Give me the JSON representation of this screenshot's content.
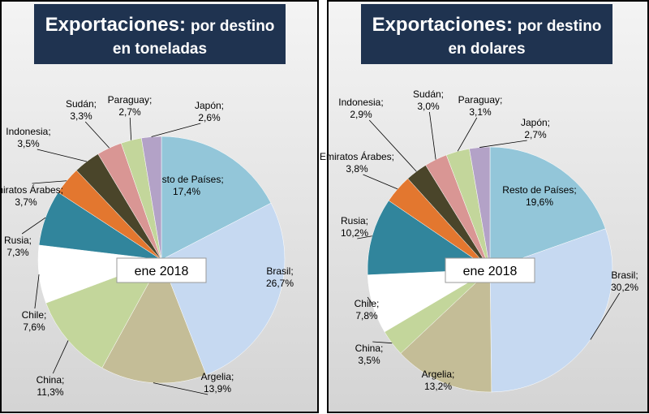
{
  "chart_data": [
    {
      "type": "pie",
      "title": "Exportaciones:",
      "subtitle": "por destino en toneladas",
      "annotation": "ene 2018",
      "separator": ";",
      "categories": [
        "Resto de Países",
        "Brasil",
        "Argelia",
        "China",
        "Chile",
        "Rusia",
        "Emiratos Árabes",
        "Indonesia",
        "Sudán",
        "Paraguay",
        "Japón"
      ],
      "values": [
        17.4,
        26.7,
        13.9,
        11.3,
        7.6,
        7.3,
        3.7,
        3.5,
        3.3,
        2.7,
        2.6
      ],
      "value_labels": [
        "17,4%",
        "26,7%",
        "13,9%",
        "11,3%",
        "7,6%",
        "7,3%",
        "3,7%",
        "3,5%",
        "3,3%",
        "2,7%",
        "2,6%"
      ],
      "colors": [
        "#93c6d9",
        "#c6d9f1",
        "#c4bd97",
        "#c3d69b",
        "#ffffff",
        "#31859c",
        "#e3772f",
        "#4a452a",
        "#d99694",
        "#c3d69b",
        "#b3a2c7"
      ]
    },
    {
      "type": "pie",
      "title": "Exportaciones:",
      "subtitle": "por destino en dolares",
      "annotation": "ene 2018",
      "separator": ";",
      "categories": [
        "Resto de Países",
        "Brasil",
        "Argelia",
        "China",
        "Chile",
        "Rusia",
        "Emiratos Árabes",
        "Indonesia",
        "Sudán",
        "Paraguay",
        "Japón"
      ],
      "values": [
        19.6,
        30.2,
        13.2,
        3.5,
        7.8,
        10.2,
        3.8,
        2.9,
        3.0,
        3.1,
        2.7
      ],
      "value_labels": [
        "19,6%",
        "30,2%",
        "13,2%",
        "3,5%",
        "7,8%",
        "10,2%",
        "3,8%",
        "2,9%",
        "3,0%",
        "3,1%",
        "2,7%"
      ],
      "colors": [
        "#93c6d9",
        "#c6d9f1",
        "#c4bd97",
        "#c3d69b",
        "#ffffff",
        "#31859c",
        "#e3772f",
        "#4a452a",
        "#d99694",
        "#c3d69b",
        "#b3a2c7"
      ]
    }
  ]
}
